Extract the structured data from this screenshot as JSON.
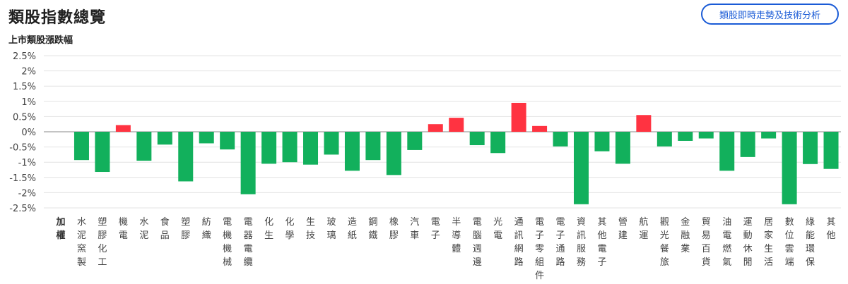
{
  "header": {
    "title": "類股指數總覽",
    "action_button": "類股即時走勢及技術分析"
  },
  "colors": {
    "up": "#ff3341",
    "down": "#12b05c",
    "grid": "#e3e3e3",
    "zero": "#888888",
    "accent": "#1a5bd6"
  },
  "chart_data": {
    "type": "bar",
    "title": "上市類股漲跌幅",
    "ylim": [
      -2.5,
      2.5
    ],
    "yticks": [
      "2.5%",
      "2%",
      "1.5%",
      "1%",
      "0.5%",
      "0%",
      "-0.5%",
      "-1%",
      "-1.5%",
      "-2%",
      "-2.5%"
    ],
    "ytick_values": [
      2.5,
      2,
      1.5,
      1,
      0.5,
      0,
      -0.5,
      -1,
      -1.5,
      -2,
      -2.5
    ],
    "grid": true,
    "categories": [
      "加權",
      "水泥窯製",
      "塑膠化工",
      "機電",
      "水泥",
      "食品",
      "塑膠",
      "紡織",
      "電機機械",
      "電器電纜",
      "化生",
      "化學",
      "生技",
      "玻璃",
      "造紙",
      "鋼鐵",
      "橡膠",
      "汽車",
      "電子",
      "半導體",
      "電腦週邊",
      "光電",
      "通訊網路",
      "電子零組件",
      "電子通路",
      "資訊服務",
      "其他電子",
      "營建",
      "航運",
      "觀光餐旅",
      "金融業",
      "貿易百貨",
      "油電燃氣",
      "運動休閒",
      "居家生活",
      "數位雲端",
      "綠能環保",
      "其他"
    ],
    "values": [
      0,
      -0.93,
      -1.32,
      0.22,
      -0.95,
      -0.42,
      -1.63,
      -0.38,
      -0.58,
      -2.05,
      -1.05,
      -1.0,
      -1.08,
      -0.75,
      -1.28,
      -0.93,
      -1.42,
      -0.6,
      0.25,
      0.46,
      -0.44,
      -0.7,
      0.95,
      0.19,
      -0.48,
      -2.38,
      -0.64,
      -1.05,
      0.55,
      -0.48,
      -0.3,
      -0.22,
      -1.28,
      -0.83,
      -0.22,
      -2.38,
      -1.06,
      -1.22
    ]
  }
}
